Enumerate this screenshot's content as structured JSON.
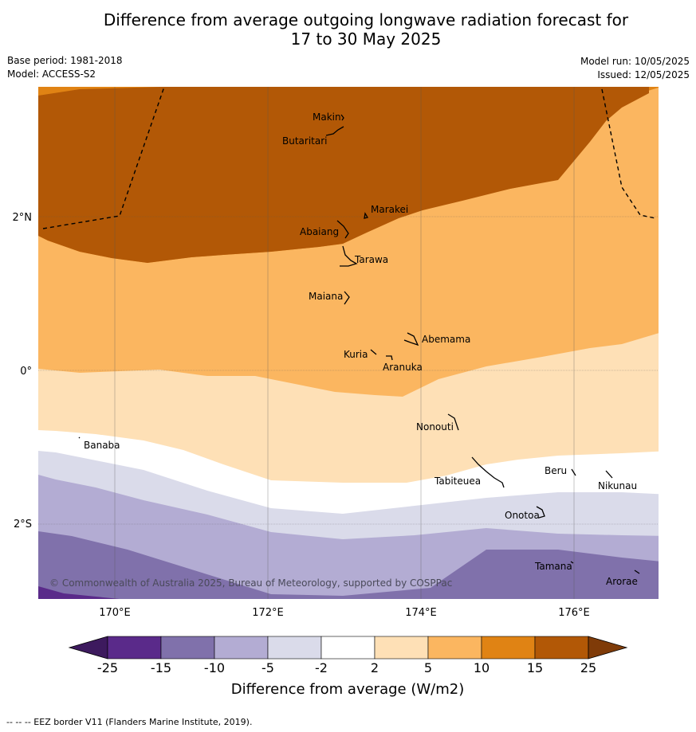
{
  "header": {
    "title_line1": "Difference from average outgoing longwave radiation forecast for",
    "title_line2": "17 to 30 May 2025",
    "base_period": "Base period: 1981-2018",
    "model": "Model: ACCESS-S2",
    "model_run": "Model run: 10/05/2025",
    "issued": "Issued: 12/05/2025"
  },
  "map": {
    "lat_labels": [
      "2°N",
      "0°",
      "2°S"
    ],
    "lon_labels": [
      "170°E",
      "172°E",
      "174°E",
      "176°E"
    ],
    "places": [
      "Makin",
      "Butaritari",
      "Marakei",
      "Abaiang",
      "Tarawa",
      "Maiana",
      "Abemama",
      "Kuria",
      "Aranuka",
      "Nonouti",
      "Banaba",
      "Tabiteuea",
      "Beru",
      "Nikunau",
      "Onotoa",
      "Tamana",
      "Arorae"
    ],
    "copyright": "© Commonwealth of Australia 2025, Bureau of Meteorology, supported by COSPPac",
    "boundary_line": "EEZ border"
  },
  "colorbar": {
    "ticks": [
      "-25",
      "-15",
      "-10",
      "-5",
      "-2",
      "2",
      "5",
      "10",
      "15",
      "25"
    ],
    "colors": [
      "#3d1a5e",
      "#5a2a8a",
      "#8071ab",
      "#b3acd3",
      "#dadbea",
      "#ffffff",
      "#fee0b6",
      "#fbb660",
      "#e08314",
      "#b25806",
      "#7f3b08"
    ],
    "title": "Difference from average (W/m2)"
  },
  "footer": {
    "note": "-- -- -- EEZ border V11 (Flanders Marine Institute, 2019)."
  }
}
